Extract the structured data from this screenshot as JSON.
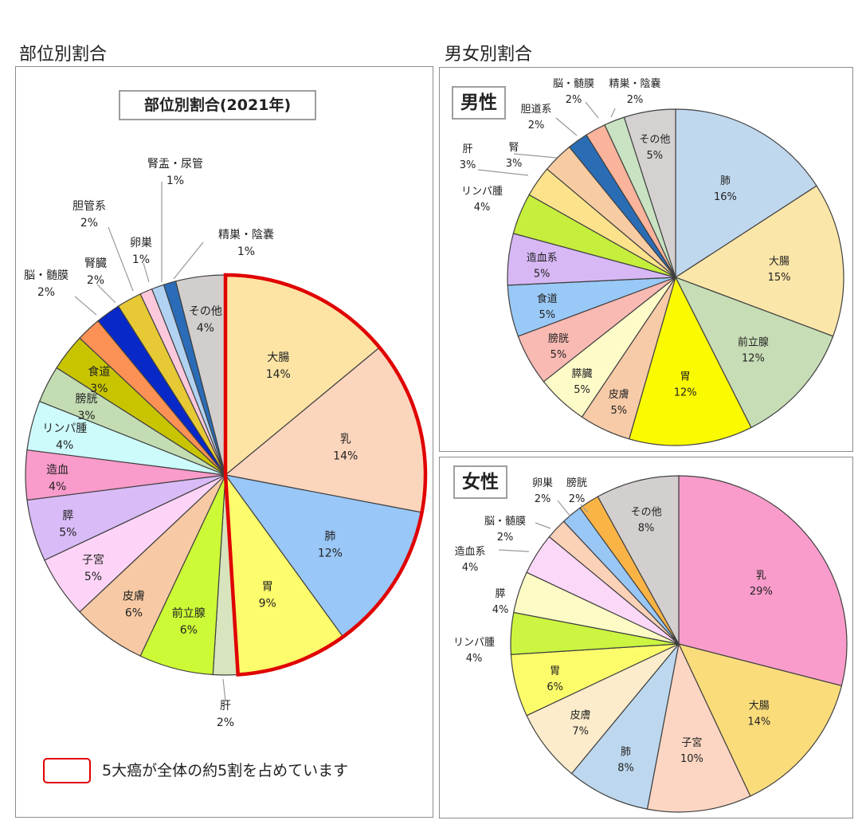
{
  "headers": {
    "left": "部位別割合",
    "right": "男女別割合"
  },
  "note": {
    "text": "5大癌が全体の約5割を占めています",
    "color": "#e00000"
  },
  "chart_data": [
    {
      "type": "pie",
      "title": "部位別割合(2021年)",
      "highlight_color": "#e00000",
      "highlight_categories": [
        "大腸",
        "乳",
        "肺",
        "胃"
      ],
      "slices": [
        {
          "label": "大腸",
          "value": 14,
          "color": "#fde4a4"
        },
        {
          "label": "乳",
          "value": 14,
          "color": "#fcd5bd"
        },
        {
          "label": "肺",
          "value": 12,
          "color": "#99c7f7"
        },
        {
          "label": "胃",
          "value": 9,
          "color": "#fcfc6c"
        },
        {
          "label": "肝",
          "value": 2,
          "color": "#d7e4bd"
        },
        {
          "label": "前立腺",
          "value": 6,
          "color": "#ccfa36"
        },
        {
          "label": "皮膚",
          "value": 6,
          "color": "#f7c9a4"
        },
        {
          "label": "子宮",
          "value": 5,
          "color": "#fdd4f7"
        },
        {
          "label": "膵",
          "value": 5,
          "color": "#d9bbf7"
        },
        {
          "label": "造血",
          "value": 4,
          "color": "#f99bcb"
        },
        {
          "label": "リンパ腫",
          "value": 4,
          "color": "#cdfbfb"
        },
        {
          "label": "膀胱",
          "value": 3,
          "color": "#c3dcb2"
        },
        {
          "label": "食道",
          "value": 3,
          "color": "#c8c400"
        },
        {
          "label": "脳・髄膜",
          "value": 2,
          "color": "#fb9154"
        },
        {
          "label": "腎臓",
          "value": 2,
          "color": "#0828c8"
        },
        {
          "label": "胆管系",
          "value": 2,
          "color": "#e6c935"
        },
        {
          "label": "卵巣",
          "value": 1,
          "color": "#fcc9dc"
        },
        {
          "label": "腎盂・尿管",
          "value": 1,
          "color": "#b2d2f2"
        },
        {
          "label": "精巣・陰嚢",
          "value": 1,
          "color": "#2a6cb8"
        },
        {
          "label": "その他",
          "value": 4,
          "color": "#d2cece"
        }
      ]
    },
    {
      "type": "pie",
      "title": "男性",
      "slices": [
        {
          "label": "肺",
          "value": 16,
          "color": "#c0d8ee"
        },
        {
          "label": "大腸",
          "value": 15,
          "color": "#fbe6a9"
        },
        {
          "label": "前立腺",
          "value": 12,
          "color": "#c7ddb6"
        },
        {
          "label": "胃",
          "value": 12,
          "color": "#fafa00"
        },
        {
          "label": "皮膚",
          "value": 5,
          "color": "#f7cba8"
        },
        {
          "label": "膵臓",
          "value": 5,
          "color": "#fdfbc8"
        },
        {
          "label": "膀胱",
          "value": 5,
          "color": "#f9bab3"
        },
        {
          "label": "食道",
          "value": 5,
          "color": "#99c9f7"
        },
        {
          "label": "造血系",
          "value": 5,
          "color": "#d7b8f5"
        },
        {
          "label": "リンパ腫",
          "value": 4,
          "color": "#c6ee3c"
        },
        {
          "label": "肝",
          "value": 3,
          "color": "#fce38b"
        },
        {
          "label": "腎",
          "value": 3,
          "color": "#f8cca3"
        },
        {
          "label": "胆道系",
          "value": 2,
          "color": "#2a6db5"
        },
        {
          "label": "脳・髄膜",
          "value": 2,
          "color": "#f9b49b"
        },
        {
          "label": "精巣・陰嚢",
          "value": 2,
          "color": "#c9e3c2"
        },
        {
          "label": "その他",
          "value": 5,
          "color": "#d5d1d1"
        }
      ]
    },
    {
      "type": "pie",
      "title": "女性",
      "slices": [
        {
          "label": "乳",
          "value": 29,
          "color": "#f99ccb"
        },
        {
          "label": "大腸",
          "value": 14,
          "color": "#fbdc7b"
        },
        {
          "label": "子宮",
          "value": 10,
          "color": "#fcd6c3"
        },
        {
          "label": "肺",
          "value": 8,
          "color": "#bdd7ee"
        },
        {
          "label": "皮膚",
          "value": 7,
          "color": "#fdeccb"
        },
        {
          "label": "胃",
          "value": 6,
          "color": "#fcfc6b"
        },
        {
          "label": "リンパ腫",
          "value": 4,
          "color": "#cbf540"
        },
        {
          "label": "膵",
          "value": 4,
          "color": "#fdfbc5"
        },
        {
          "label": "造血系",
          "value": 4,
          "color": "#fcd8f8"
        },
        {
          "label": "脳・髄膜",
          "value": 2,
          "color": "#fbd1b8"
        },
        {
          "label": "卵巣",
          "value": 2,
          "color": "#99c7f5"
        },
        {
          "label": "膀胱",
          "value": 2,
          "color": "#fab446"
        },
        {
          "label": "その他",
          "value": 8,
          "color": "#d3cfcf"
        }
      ]
    }
  ]
}
